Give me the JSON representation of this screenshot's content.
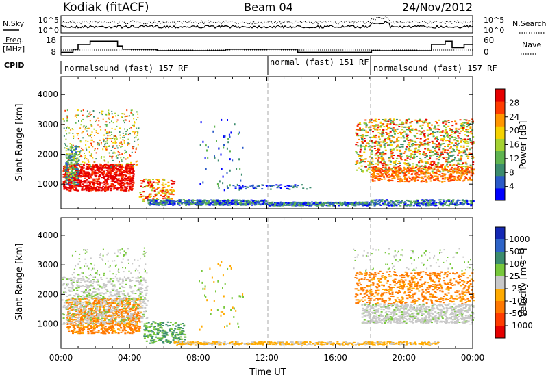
{
  "header": {
    "station": "Kodiak (fitACF)",
    "beam": "Beam 04",
    "date": "24/Nov/2012"
  },
  "noise_panel": {
    "left_label": "N.Sky",
    "right_label": "N.Search",
    "left_ticks": [
      "10^5",
      "10^0"
    ],
    "right_ticks": [
      "10^5",
      "10^0"
    ]
  },
  "freq_panel": {
    "left_label_1": "Freq.",
    "left_label_2": "[MHz]",
    "right_label": "Nave",
    "left_ticks": [
      "18",
      "8"
    ],
    "right_ticks": [
      "60",
      "0"
    ],
    "freq_steps": [
      [
        0.0,
        10
      ],
      [
        0.7,
        12
      ],
      [
        1.0,
        15
      ],
      [
        1.7,
        17
      ],
      [
        3.3,
        14
      ],
      [
        3.6,
        12
      ],
      [
        5.6,
        11
      ],
      [
        6.4,
        11
      ],
      [
        9.6,
        12
      ],
      [
        12.2,
        12
      ],
      [
        13.8,
        10
      ],
      [
        16.0,
        10
      ],
      [
        18.1,
        11
      ],
      [
        21.6,
        15
      ],
      [
        22.4,
        17
      ],
      [
        22.8,
        13
      ],
      [
        23.5,
        15
      ],
      [
        24.0,
        15
      ]
    ]
  },
  "cpid": {
    "label": "CPID",
    "segments": [
      {
        "label": "normalsound (fast) 157 RF",
        "start": 0.0,
        "end": 12.0
      },
      {
        "label": "normal (fast) 151 RF",
        "start": 12.0,
        "end": 18.0
      },
      {
        "label": "normalsound (fast) 157 RF",
        "start": 18.0,
        "end": 24.0
      }
    ]
  },
  "chart_data": [
    {
      "type": "heatmap",
      "title": "",
      "ylabel": "Slant Range [km]",
      "xlabel": "",
      "xlim": [
        0,
        24
      ],
      "ylim": [
        180,
        4600
      ],
      "yticks": [
        "1000",
        "2000",
        "3000",
        "4000"
      ],
      "colorbar": {
        "label": "Power [dB]",
        "ticks": [
          "4",
          "8",
          "12",
          "16",
          "20",
          "24",
          "28"
        ],
        "colors": [
          "#0000ff",
          "#2a5ac8",
          "#3c8c6e",
          "#5fb450",
          "#a5d232",
          "#f5d200",
          "#ff9600",
          "#ff3c00",
          "#e60000"
        ]
      },
      "features": [
        {
          "x": [
            0.0,
            4.3
          ],
          "y": [
            700,
            2000
          ],
          "value": "high"
        },
        {
          "x": [
            17.0,
            24.0
          ],
          "y": [
            1400,
            3300
          ],
          "value": "mixed"
        },
        {
          "x": [
            5.0,
            24.0
          ],
          "y": [
            300,
            500
          ],
          "value": "low"
        }
      ]
    },
    {
      "type": "heatmap",
      "title": "",
      "ylabel": "Slant Range [km]",
      "xlabel": "Time UT",
      "xlim": [
        0,
        24
      ],
      "ylim": [
        180,
        4600
      ],
      "yticks": [
        "1000",
        "2000",
        "3000",
        "4000"
      ],
      "xticks": [
        "00:00",
        "04:00",
        "08:00",
        "12:00",
        "16:00",
        "20:00",
        "00:00"
      ],
      "colorbar": {
        "label": "Velocity [m s⁻¹]",
        "ticks": [
          "1000",
          "500",
          "100",
          "25",
          "-25",
          "-100",
          "-500",
          "-1000"
        ],
        "colors": [
          "#1428b4",
          "#2e64c8",
          "#3c8c6e",
          "#78c83c",
          "#c8c8c8",
          "#ffaa00",
          "#ff7800",
          "#ff3c00",
          "#e60000"
        ]
      },
      "features": [
        {
          "x": [
            0.0,
            4.5
          ],
          "y": [
            800,
            2000
          ],
          "value": "-100"
        },
        {
          "x": [
            17.0,
            24.0
          ],
          "y": [
            1400,
            2800
          ],
          "value": "-100"
        },
        {
          "x": [
            17.0,
            24.0
          ],
          "y": [
            1100,
            1600
          ],
          "value": "0"
        }
      ]
    }
  ]
}
